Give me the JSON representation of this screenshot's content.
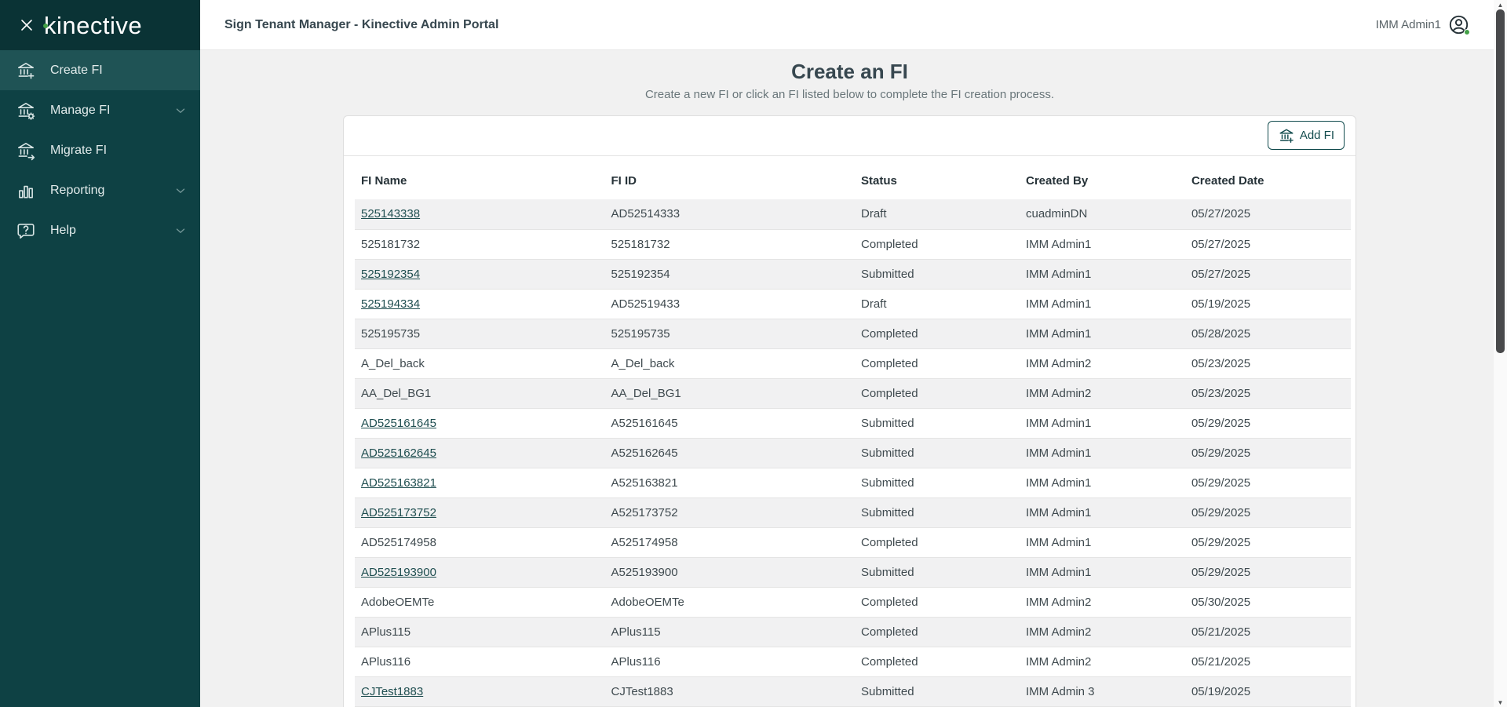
{
  "sidebar": {
    "logo_text": "kinective",
    "items": [
      {
        "label": "Create FI",
        "icon": "bank-plus",
        "active": true,
        "expandable": false
      },
      {
        "label": "Manage FI",
        "icon": "bank-gear",
        "active": false,
        "expandable": true
      },
      {
        "label": "Migrate FI",
        "icon": "bank-arrow",
        "active": false,
        "expandable": false
      },
      {
        "label": "Reporting",
        "icon": "bar-chart",
        "active": false,
        "expandable": true
      },
      {
        "label": "Help",
        "icon": "help-bubble",
        "active": false,
        "expandable": true
      }
    ]
  },
  "header": {
    "title": "Sign Tenant Manager - Kinective Admin Portal",
    "user_name": "IMM Admin1"
  },
  "page": {
    "title": "Create an FI",
    "subtitle": "Create a new FI or click an FI listed below to complete the FI creation process.",
    "add_button_label": "Add FI"
  },
  "table": {
    "columns": [
      "FI Name",
      "FI ID",
      "Status",
      "Created By",
      "Created Date"
    ],
    "rows": [
      {
        "fi_name": "525143338",
        "link": true,
        "fi_id": "AD52514333",
        "status": "Draft",
        "created_by": "cuadminDN",
        "created_date": "05/27/2025"
      },
      {
        "fi_name": "525181732",
        "link": false,
        "fi_id": "525181732",
        "status": "Completed",
        "created_by": "IMM Admin1",
        "created_date": "05/27/2025"
      },
      {
        "fi_name": "525192354",
        "link": true,
        "fi_id": "525192354",
        "status": "Submitted",
        "created_by": "IMM Admin1",
        "created_date": "05/27/2025"
      },
      {
        "fi_name": "525194334",
        "link": true,
        "fi_id": "AD52519433",
        "status": "Draft",
        "created_by": "IMM Admin1",
        "created_date": "05/19/2025"
      },
      {
        "fi_name": "525195735",
        "link": false,
        "fi_id": "525195735",
        "status": "Completed",
        "created_by": "IMM Admin1",
        "created_date": "05/28/2025"
      },
      {
        "fi_name": "A_Del_back",
        "link": false,
        "fi_id": "A_Del_back",
        "status": "Completed",
        "created_by": "IMM Admin2",
        "created_date": "05/23/2025"
      },
      {
        "fi_name": "AA_Del_BG1",
        "link": false,
        "fi_id": "AA_Del_BG1",
        "status": "Completed",
        "created_by": "IMM Admin2",
        "created_date": "05/23/2025"
      },
      {
        "fi_name": "AD525161645",
        "link": true,
        "fi_id": "A525161645",
        "status": "Submitted",
        "created_by": "IMM Admin1",
        "created_date": "05/29/2025"
      },
      {
        "fi_name": "AD525162645",
        "link": true,
        "fi_id": "A525162645",
        "status": "Submitted",
        "created_by": "IMM Admin1",
        "created_date": "05/29/2025"
      },
      {
        "fi_name": "AD525163821",
        "link": true,
        "fi_id": "A525163821",
        "status": "Submitted",
        "created_by": "IMM Admin1",
        "created_date": "05/29/2025"
      },
      {
        "fi_name": "AD525173752",
        "link": true,
        "fi_id": "A525173752",
        "status": "Submitted",
        "created_by": "IMM Admin1",
        "created_date": "05/29/2025"
      },
      {
        "fi_name": "AD525174958",
        "link": false,
        "fi_id": "A525174958",
        "status": "Completed",
        "created_by": "IMM Admin1",
        "created_date": "05/29/2025"
      },
      {
        "fi_name": "AD525193900",
        "link": true,
        "fi_id": "A525193900",
        "status": "Submitted",
        "created_by": "IMM Admin1",
        "created_date": "05/29/2025"
      },
      {
        "fi_name": "AdobeOEMTe",
        "link": false,
        "fi_id": "AdobeOEMTe",
        "status": "Completed",
        "created_by": "IMM Admin2",
        "created_date": "05/30/2025"
      },
      {
        "fi_name": "APlus115",
        "link": false,
        "fi_id": "APlus115",
        "status": "Completed",
        "created_by": "IMM Admin2",
        "created_date": "05/21/2025"
      },
      {
        "fi_name": "APlus116",
        "link": false,
        "fi_id": "APlus116",
        "status": "Completed",
        "created_by": "IMM Admin2",
        "created_date": "05/21/2025"
      },
      {
        "fi_name": "CJTest1883",
        "link": true,
        "fi_id": "CJTest1883",
        "status": "Submitted",
        "created_by": "IMM Admin 3",
        "created_date": "05/19/2025"
      }
    ]
  },
  "colors": {
    "sidebar_teal": "#0e4144",
    "sidebar_logo_strip": "#0a3335",
    "sidebar_active_item": "#1f5355",
    "accent_green": "#43a047",
    "link_teal": "#1f4e50",
    "button_teal": "#134c4e",
    "heading_gray": "#37474f",
    "page_background": "#f1f1f1"
  }
}
